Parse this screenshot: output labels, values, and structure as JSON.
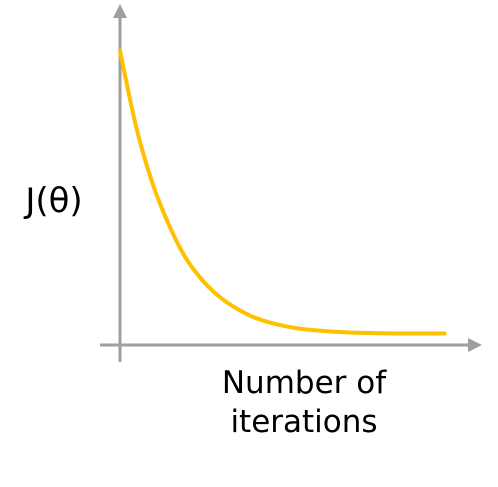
{
  "chart_data": {
    "type": "line",
    "title": "",
    "xlabel": [
      "Number of",
      "iterations"
    ],
    "ylabel": "J(θ)",
    "grid": false,
    "legend": "none",
    "x": [
      0,
      0.05,
      0.1,
      0.15,
      0.2,
      0.25,
      0.3,
      0.35,
      0.4,
      0.45,
      0.5,
      0.55,
      0.6,
      0.65,
      0.7,
      0.75,
      0.8,
      0.85,
      0.9,
      0.95,
      1.0
    ],
    "xlim": [
      0,
      1.1
    ],
    "ylim": [
      0,
      1.05
    ],
    "series": [
      {
        "values": [
          1.0,
          0.74,
          0.55,
          0.41,
          0.3,
          0.225,
          0.17,
          0.13,
          0.1,
          0.08,
          0.066,
          0.056,
          0.05,
          0.046,
          0.043,
          0.041,
          0.04,
          0.039,
          0.039,
          0.039,
          0.039
        ]
      }
    ],
    "colors": {
      "axis": "#9e9e9e",
      "curve": "#ffc000",
      "text": "#000000"
    }
  }
}
